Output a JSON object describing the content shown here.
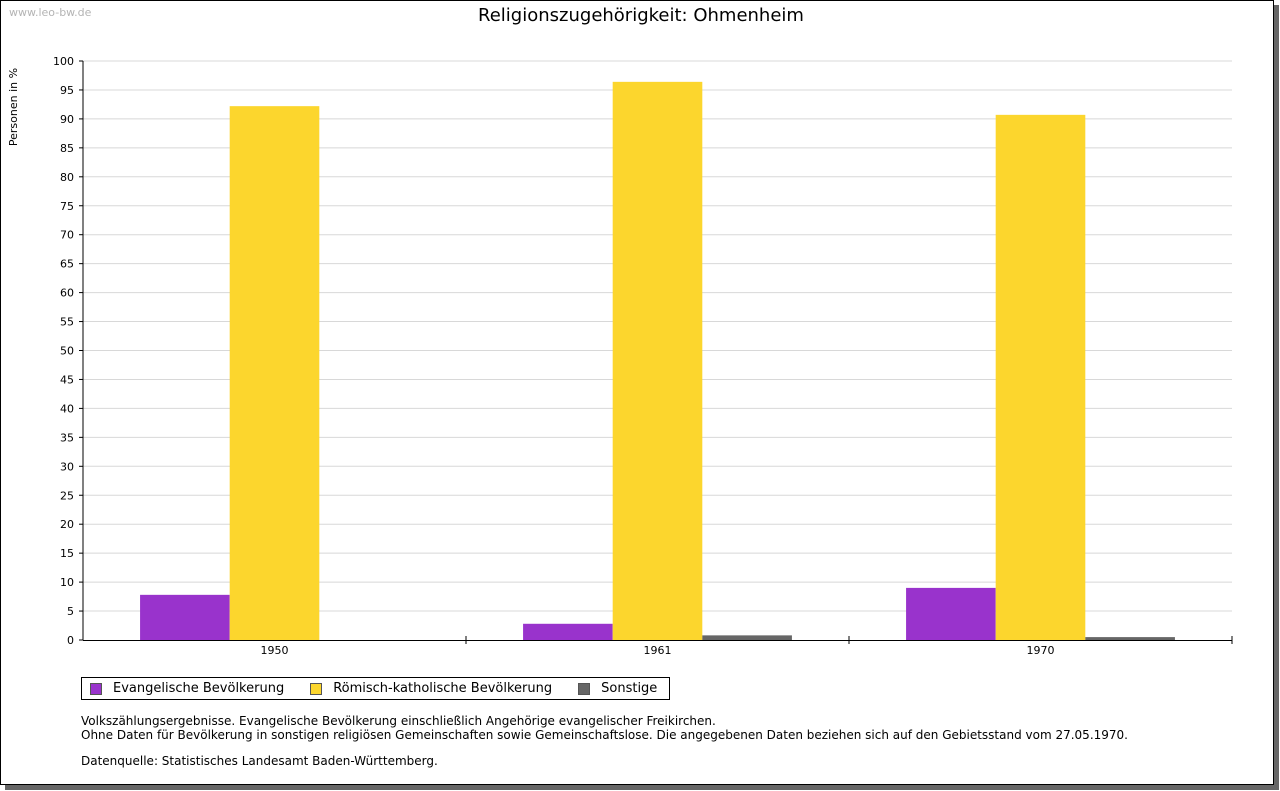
{
  "watermark": "www.leo-bw.de",
  "chart_data": {
    "type": "bar",
    "title": "Religionszugehörigkeit: Ohmenheim",
    "ylabel": "Personen in %",
    "xlabel": "",
    "ylim": [
      0,
      100
    ],
    "yticks": [
      0,
      5,
      10,
      15,
      20,
      25,
      30,
      35,
      40,
      45,
      50,
      55,
      60,
      65,
      70,
      75,
      80,
      85,
      90,
      95,
      100
    ],
    "grid": true,
    "legend_position": "bottom-left",
    "categories": [
      "1950",
      "1961",
      "1970"
    ],
    "series": [
      {
        "name": "Evangelische Bevölkerung",
        "color": "#9933cc",
        "values": [
          7.8,
          2.8,
          9.0
        ]
      },
      {
        "name": "Römisch-katholische Bevölkerung",
        "color": "#fcd62d",
        "values": [
          92.2,
          96.4,
          90.7
        ]
      },
      {
        "name": "Sonstige",
        "color": "#666666",
        "values": [
          0,
          0.8,
          0.5
        ]
      }
    ]
  },
  "notes": {
    "line1": "Volkszählungsergebnisse. Evangelische Bevölkerung einschließlich Angehörige evangelischer Freikirchen.",
    "line2": "Ohne Daten für Bevölkerung in sonstigen religiösen Gemeinschaften sowie Gemeinschaftslose. Die angegebenen Daten beziehen sich auf den Gebietsstand vom 27.05.1970.",
    "source": "Datenquelle: Statistisches Landesamt Baden-Württemberg."
  }
}
